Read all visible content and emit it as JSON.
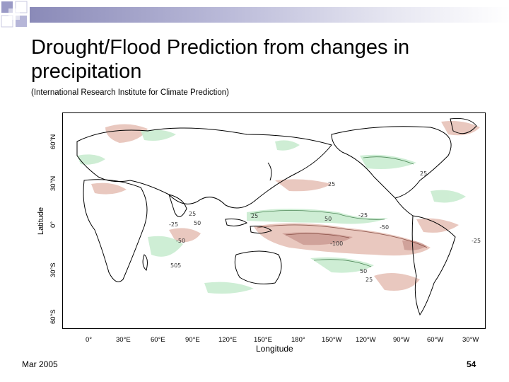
{
  "slide": {
    "title": "Drought/Flood Prediction from changes in precipitation",
    "subtitle": "(International Research Institute for Climate Prediction)",
    "footer_date": "Mar 2005",
    "page_number": "54"
  },
  "map": {
    "latitude_title": "Latitude",
    "latitude_ticks": [
      "60°N",
      "30°N",
      "0°",
      "30°S",
      "60°S"
    ],
    "longitude_title": "Longitude",
    "longitude_ticks": [
      "0°",
      "30°E",
      "60°E",
      "90°E",
      "120°E",
      "150°E",
      "180°",
      "150°W",
      "120°W",
      "90°W",
      "60°W",
      "30°W"
    ],
    "contour_labels": {
      "pos_25": "25",
      "pos_50": "50",
      "pos_505": "505",
      "neg_25": "-25",
      "neg_50": "-50",
      "neg_100": "-100"
    },
    "colors": {
      "wet": "#c9ecd0",
      "dry": "#e2b6aa",
      "dry_strong": "#c4928a",
      "accent": "#8a8ab8"
    }
  }
}
